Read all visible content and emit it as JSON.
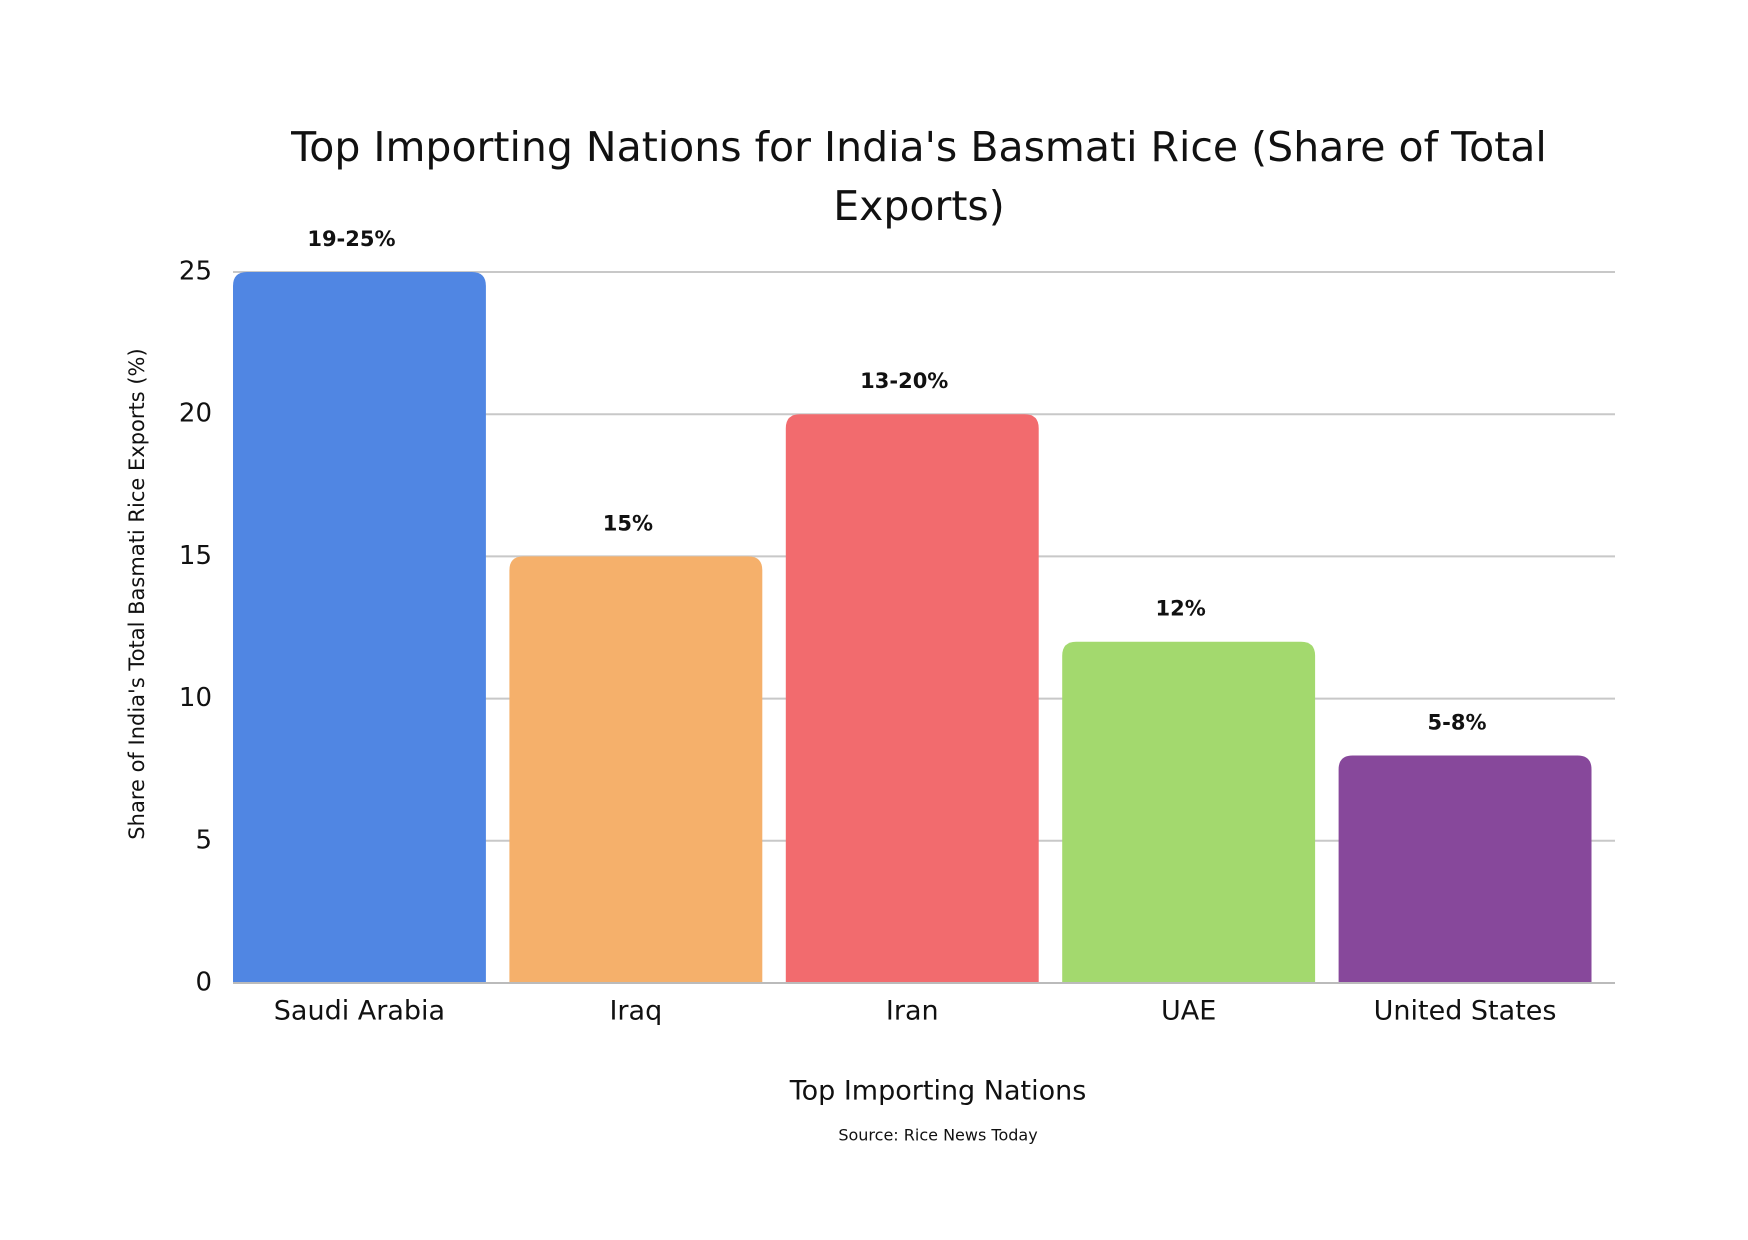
{
  "chart_data": {
    "type": "bar",
    "title": "Top Importing Nations for India's Basmati Rice (Share of Total Exports)",
    "x_label": "Top Importing Nations",
    "y_label": "Share of India's Total Basmati Rice Exports (%)",
    "source": "Source: Rice News Today",
    "categories": [
      "Saudi Arabia",
      "Iraq",
      "Iran",
      "UAE",
      "United States"
    ],
    "values": [
      25,
      15,
      20,
      12,
      8
    ],
    "value_labels": [
      "19-25%",
      "15%",
      "13-20%",
      "12%",
      "5-8%"
    ],
    "colors": [
      "#5086e3",
      "#f5b06b",
      "#f26b6e",
      "#a3d96e",
      "#87489b"
    ],
    "ylim": [
      0,
      25
    ],
    "yticks": [
      0,
      5,
      10,
      15,
      20,
      25
    ],
    "grid": true
  }
}
